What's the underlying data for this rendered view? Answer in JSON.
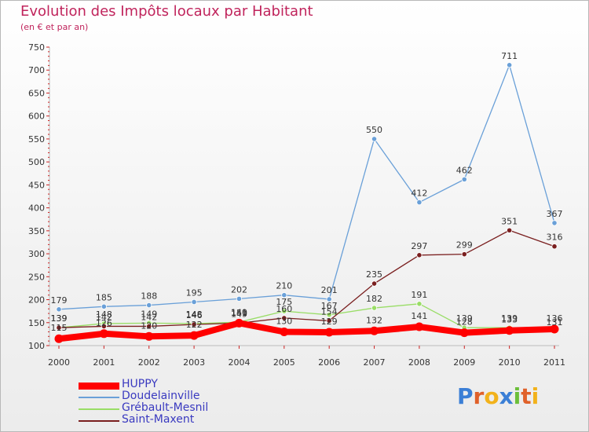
{
  "title": "Evolution des Impôts locaux par Habitant",
  "subtitle": "(en € et par an)",
  "logo_text": "Proxiti",
  "chart_data": {
    "type": "line",
    "title": "Evolution des Impôts locaux par Habitant",
    "subtitle": "(en € et par an)",
    "xlabel": "",
    "ylabel": "",
    "x": [
      "2000",
      "2001",
      "2002",
      "2003",
      "2004",
      "2005",
      "2006",
      "2007",
      "2008",
      "2009",
      "2010",
      "2011"
    ],
    "ylim": [
      100,
      750
    ],
    "yticks": [
      100,
      150,
      200,
      250,
      300,
      350,
      400,
      450,
      500,
      550,
      600,
      650,
      700,
      750
    ],
    "grid": false,
    "legend_position": "bottom-left",
    "series": [
      {
        "name": "HUPPY",
        "color": "#ff0000",
        "values": [
          115,
          126,
          120,
          122,
          149,
          130,
          129,
          132,
          141,
          128,
          133,
          136
        ]
      },
      {
        "name": "Doudelainville",
        "color": "#6aa0d8",
        "values": [
          179,
          185,
          188,
          195,
          202,
          210,
          201,
          550,
          412,
          462,
          711,
          367
        ]
      },
      {
        "name": "Grébault-Mesnil",
        "color": "#99dd66",
        "values": [
          139,
          148,
          149,
          148,
          151,
          175,
          167,
          182,
          191,
          139,
          139,
          131
        ]
      },
      {
        "name": "Saint-Maxent",
        "color": "#7a1f1f",
        "values": [
          139,
          142,
          142,
          146,
          149,
          160,
          154,
          235,
          297,
          299,
          351,
          316
        ]
      }
    ]
  }
}
